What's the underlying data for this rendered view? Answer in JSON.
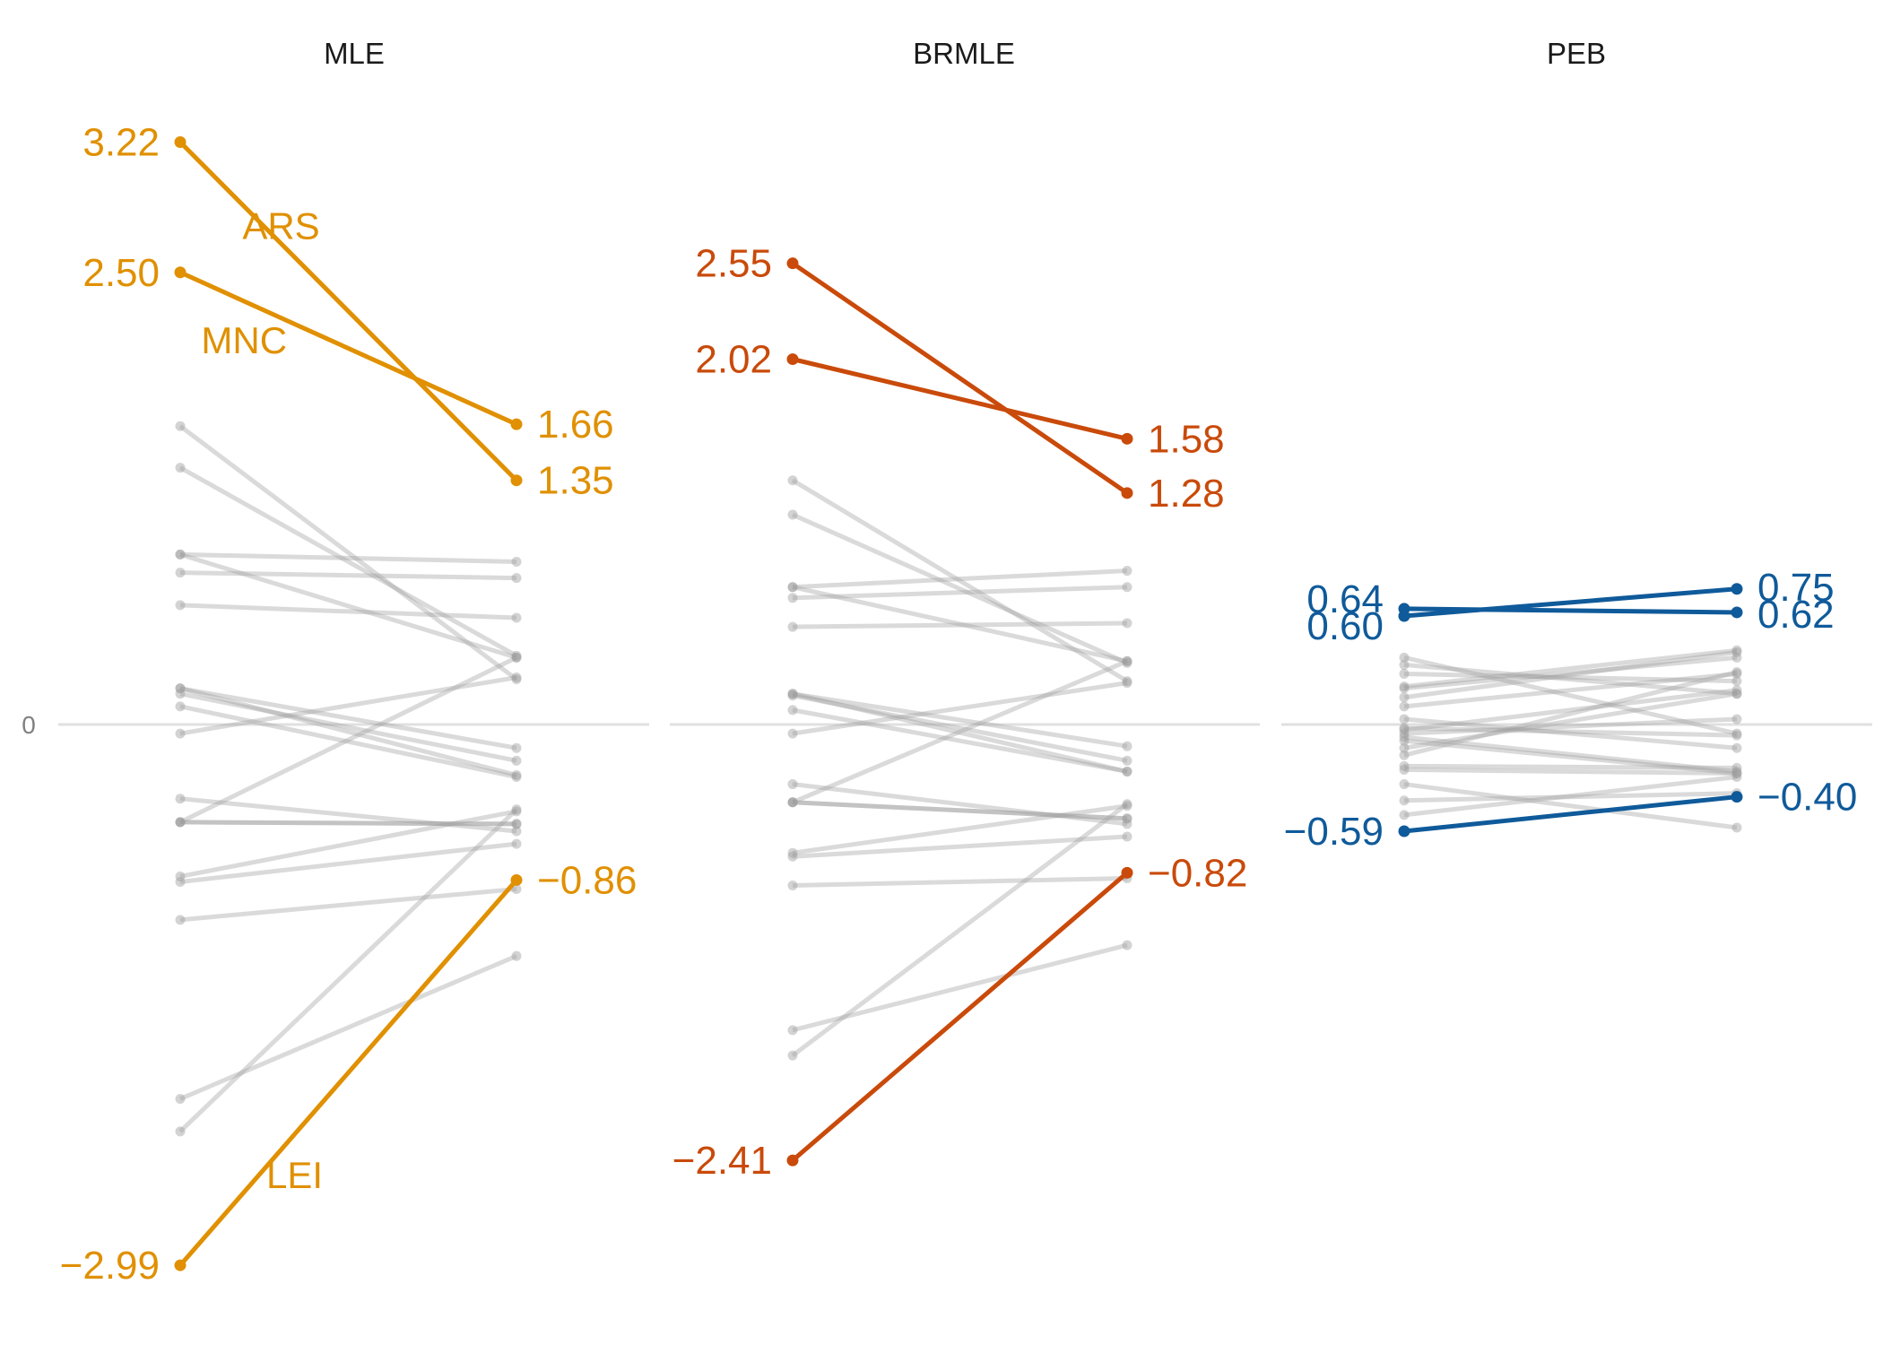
{
  "chart_data": {
    "type": "line",
    "y_zero_label": "0",
    "grey_color": "#9e9e9e",
    "panels": [
      {
        "title": "MLE",
        "color": "#E09000",
        "highlight": [
          {
            "name": "ARS",
            "start": 3.22,
            "end": 1.35,
            "start_label": "3.22",
            "end_label": "1.35"
          },
          {
            "name": "MNC",
            "start": 2.5,
            "end": 1.66,
            "start_label": "2.50",
            "end_label": "1.66"
          },
          {
            "name": "LEI",
            "start": -2.99,
            "end": -0.86,
            "start_label": "−2.99",
            "end_label": "−0.86"
          }
        ],
        "background": [
          [
            1.65,
            0.25
          ],
          [
            1.42,
            0.38
          ],
          [
            0.94,
            0.9
          ],
          [
            0.84,
            0.81
          ],
          [
            0.66,
            0.59
          ],
          [
            0.2,
            -0.13
          ],
          [
            0.17,
            -0.2
          ],
          [
            0.1,
            -0.29
          ],
          [
            -0.05,
            0.26
          ],
          [
            -0.41,
            -0.59
          ],
          [
            -0.54,
            0.37
          ],
          [
            -0.54,
            -0.55
          ],
          [
            -0.84,
            -0.48
          ],
          [
            -0.87,
            -0.66
          ],
          [
            -1.08,
            -0.91
          ],
          [
            -2.07,
            -1.28
          ],
          [
            -2.25,
            -0.47
          ],
          [
            0.2,
            -0.28
          ],
          [
            0.94,
            0.37
          ],
          [
            -0.54,
            -0.55
          ]
        ]
      },
      {
        "title": "BRMLE",
        "color": "#C94A0A",
        "highlight": [
          {
            "name": "",
            "start": 2.55,
            "end": 1.28,
            "start_label": "2.55",
            "end_label": "1.28"
          },
          {
            "name": "",
            "start": 2.02,
            "end": 1.58,
            "start_label": "2.02",
            "end_label": "1.58"
          },
          {
            "name": "",
            "start": -2.41,
            "end": -0.82,
            "start_label": "−2.41",
            "end_label": "−0.82"
          }
        ],
        "background": [
          [
            1.35,
            0.24
          ],
          [
            1.16,
            0.34
          ],
          [
            0.76,
            0.85
          ],
          [
            0.7,
            0.76
          ],
          [
            0.54,
            0.56
          ],
          [
            0.17,
            -0.12
          ],
          [
            0.16,
            -0.2
          ],
          [
            0.08,
            -0.26
          ],
          [
            -0.05,
            0.23
          ],
          [
            -0.33,
            -0.55
          ],
          [
            -0.43,
            0.35
          ],
          [
            -0.43,
            -0.52
          ],
          [
            -0.71,
            -0.45
          ],
          [
            -0.73,
            -0.62
          ],
          [
            -0.89,
            -0.85
          ],
          [
            -1.69,
            -1.22
          ],
          [
            -1.83,
            -0.44
          ],
          [
            0.17,
            -0.26
          ],
          [
            0.76,
            0.35
          ],
          [
            -0.43,
            -0.52
          ]
        ]
      },
      {
        "title": "PEB",
        "color": "#0F5A9A",
        "highlight": [
          {
            "name": "",
            "start": 0.64,
            "end": 0.62,
            "start_label": "0.64",
            "end_label": "0.62"
          },
          {
            "name": "",
            "start": 0.6,
            "end": 0.75,
            "start_label": "0.60",
            "end_label": "0.75"
          },
          {
            "name": "",
            "start": -0.59,
            "end": -0.4,
            "start_label": "−0.59",
            "end_label": "−0.40"
          }
        ],
        "background": [
          [
            0.37,
            -0.05
          ],
          [
            0.33,
            0.17
          ],
          [
            0.21,
            0.41
          ],
          [
            0.2,
            0.37
          ],
          [
            0.1,
            0.28
          ],
          [
            0.03,
            -0.13
          ],
          [
            -0.03,
            0.19
          ],
          [
            -0.07,
            -0.26
          ],
          [
            -0.05,
            0.03
          ],
          [
            -0.23,
            -0.24
          ],
          [
            -0.17,
            0.29
          ],
          [
            -0.25,
            -0.27
          ],
          [
            -0.33,
            -0.57
          ],
          [
            -0.42,
            -0.38
          ],
          [
            -0.5,
            -0.29
          ],
          [
            -0.02,
            -0.06
          ],
          [
            -0.13,
            0.17
          ],
          [
            0.28,
            0.24
          ],
          [
            -0.09,
            -0.27
          ],
          [
            0.15,
            0.4
          ]
        ]
      }
    ]
  }
}
